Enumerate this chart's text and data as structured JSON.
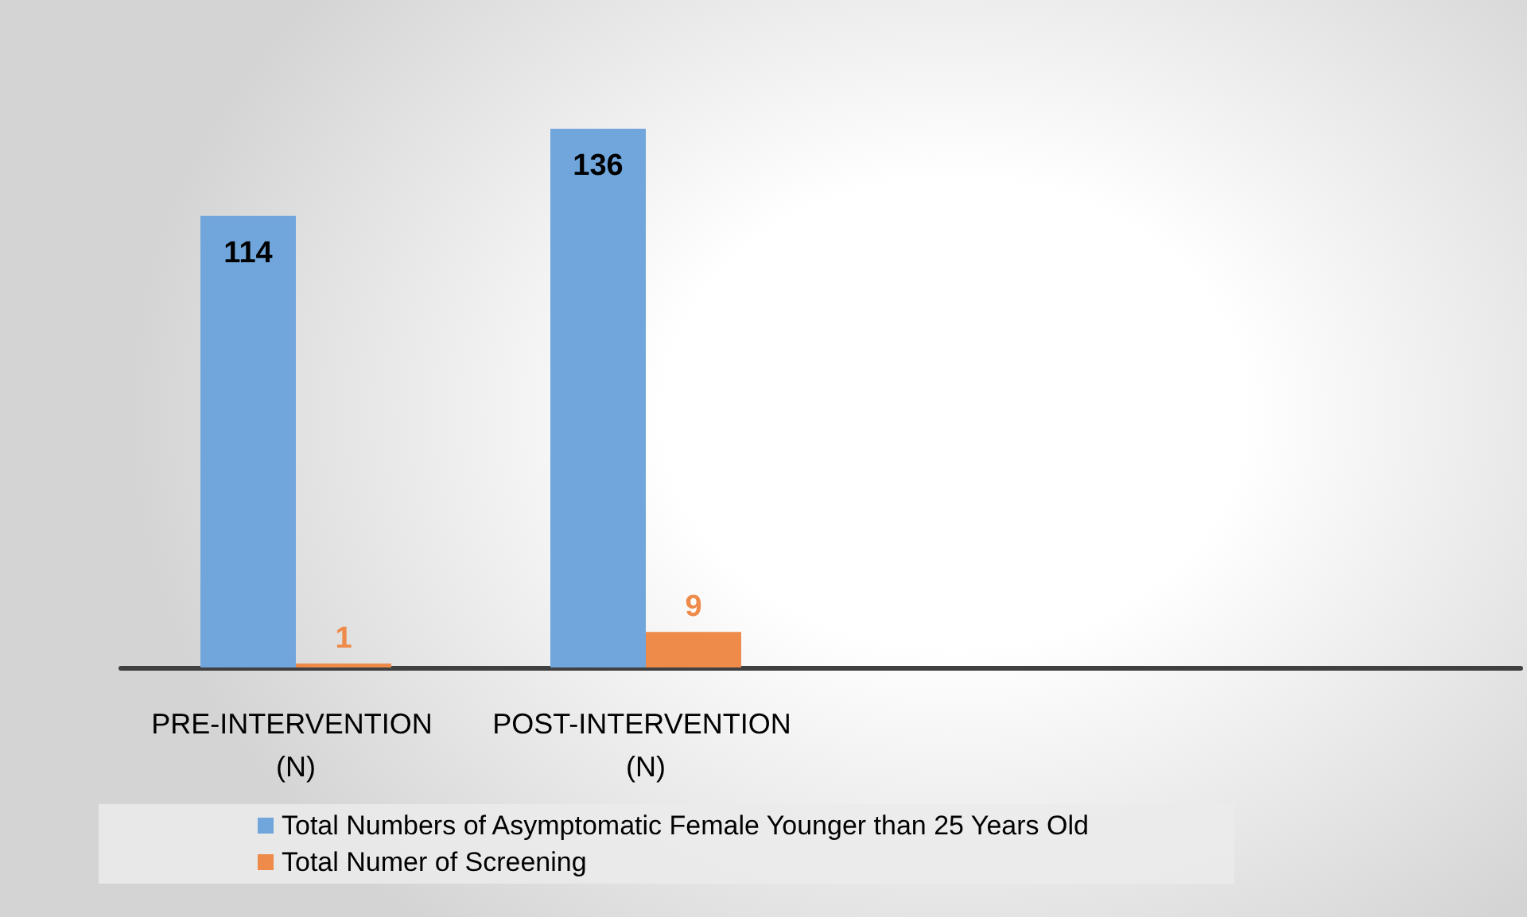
{
  "chart_data": {
    "type": "bar",
    "categories": [
      "PRE-INTERVENTION (N)",
      "POST-INTERVENTION (N)",
      null,
      null
    ],
    "series": [
      {
        "name": "Total Numbers of Asymptomatic Female Younger than 25 Years Old",
        "color": "#70a6dc",
        "values": [
          114,
          136,
          null,
          null
        ]
      },
      {
        "name": "Total Numer of Screening",
        "color": "#ee8a4a",
        "values": [
          1,
          9,
          null,
          null
        ]
      }
    ],
    "data_labels": true,
    "legend": "bottom",
    "grid": false
  }
}
